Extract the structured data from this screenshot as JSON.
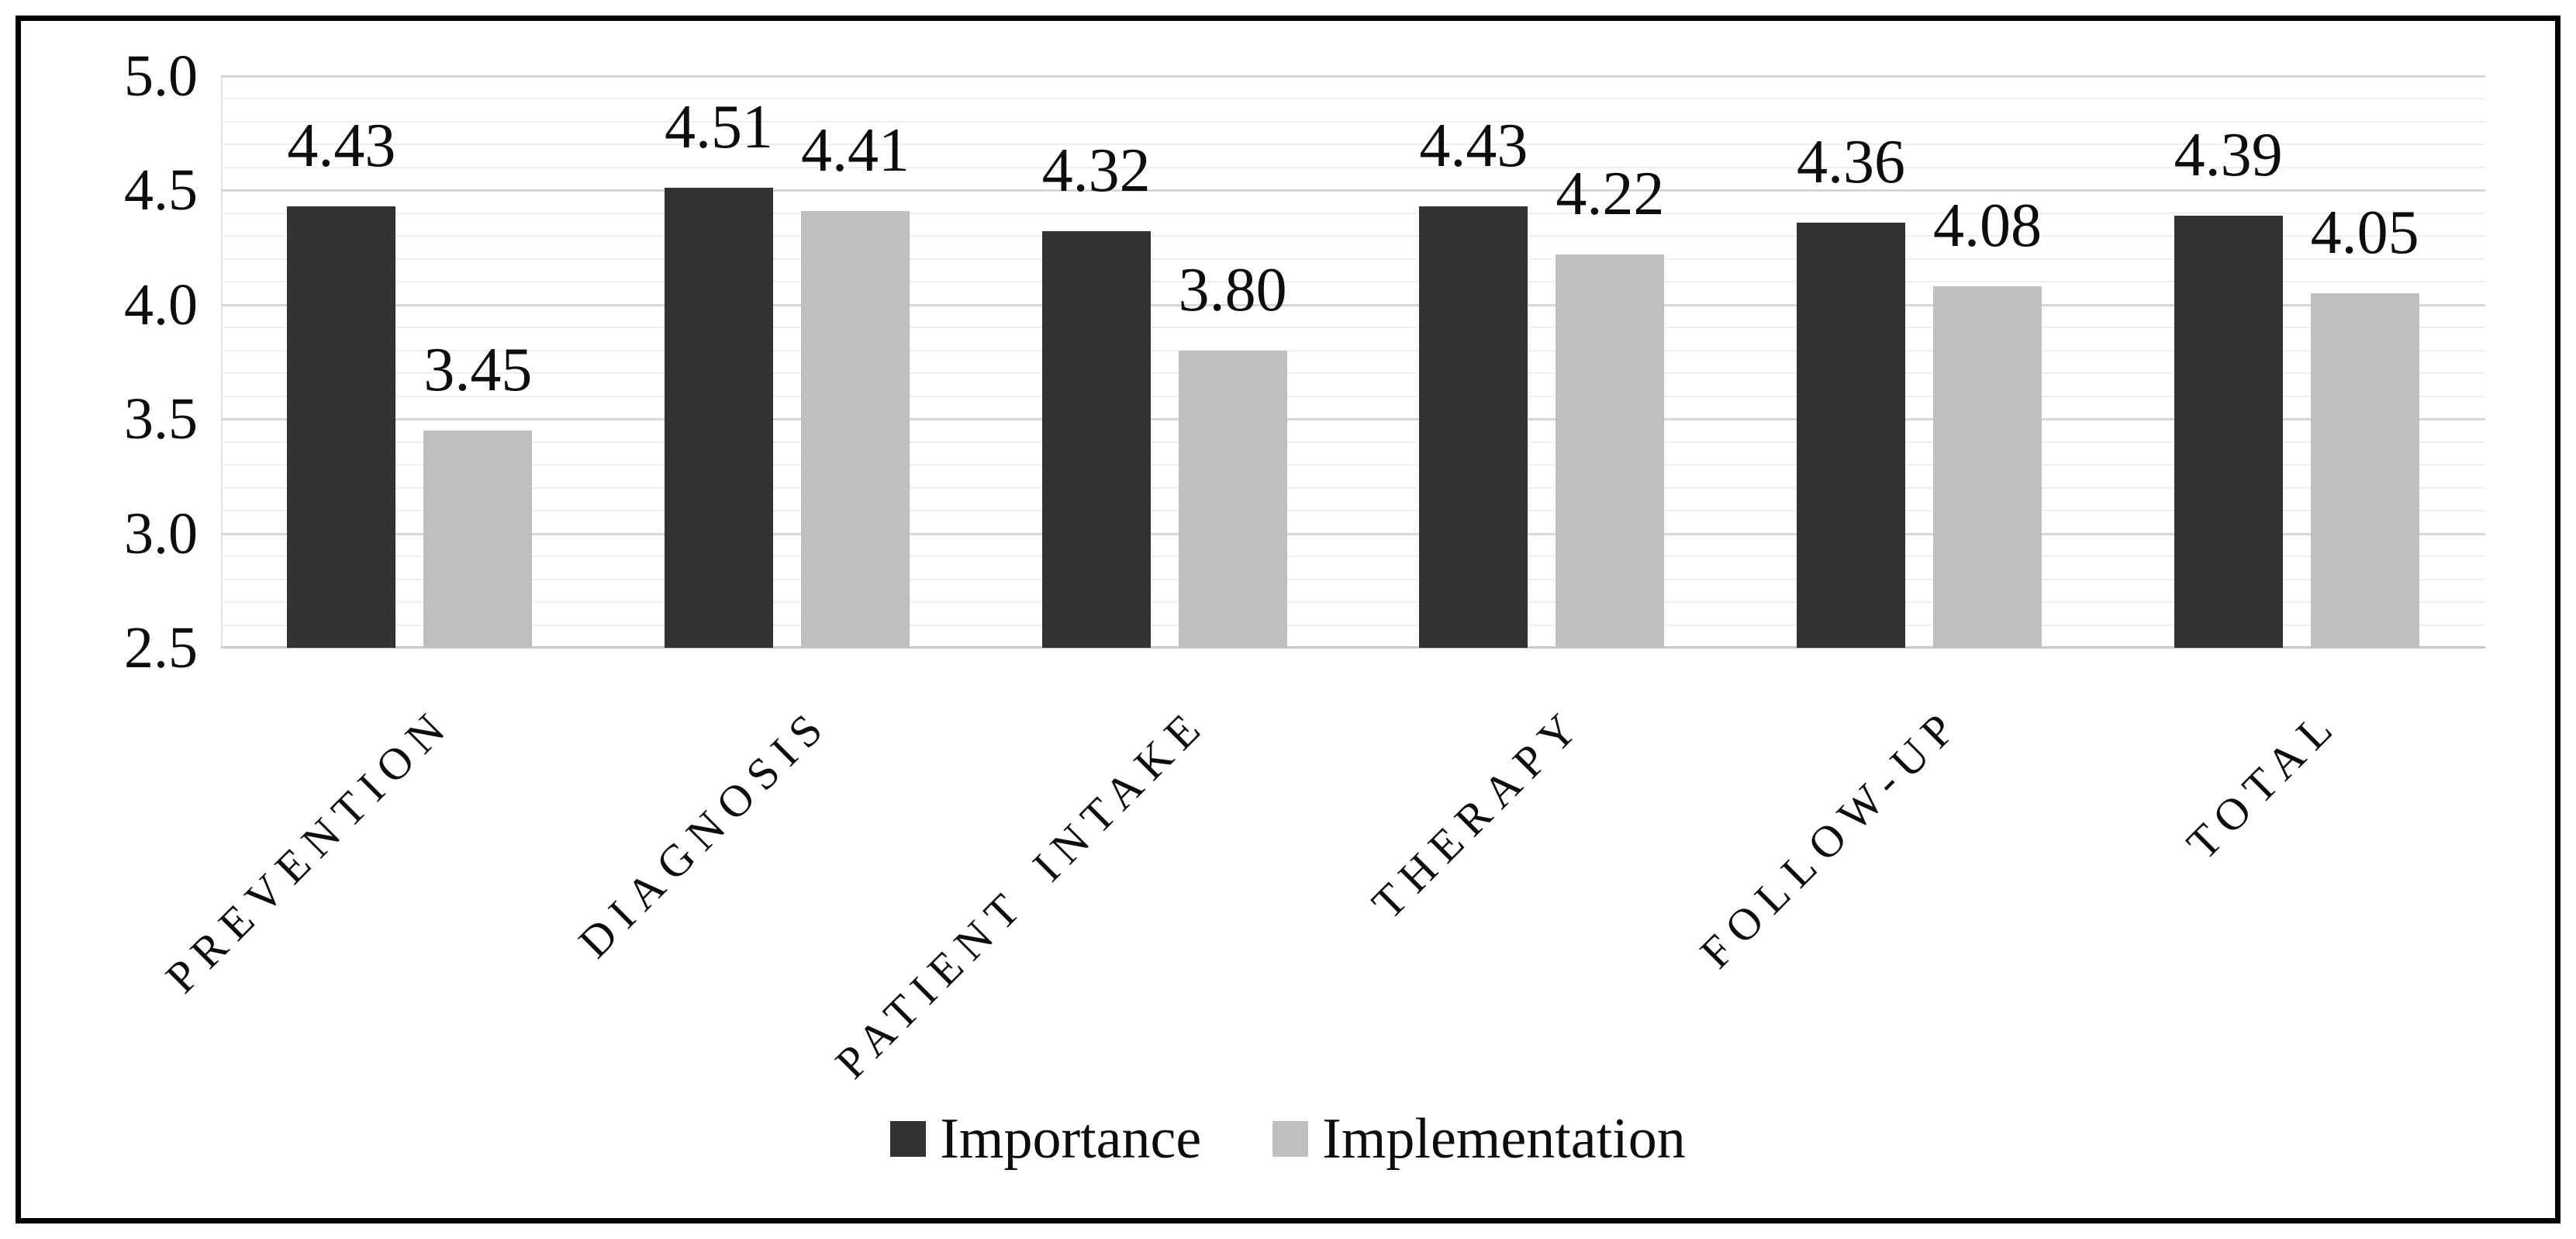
{
  "chart_data": {
    "type": "bar",
    "title": "",
    "xlabel": "",
    "ylabel": "",
    "categories": [
      "PREVENTION",
      "DIAGNOSIS",
      "PATIENT INTAKE",
      "THERAPY",
      "FOLLOW-UP",
      "TOTAL"
    ],
    "series": [
      {
        "name": "Importance",
        "color": "#323232",
        "values": [
          4.43,
          4.51,
          4.32,
          4.43,
          4.36,
          4.39
        ]
      },
      {
        "name": "Implementation",
        "color": "#bfbfbf",
        "values": [
          3.45,
          4.41,
          3.8,
          4.22,
          4.08,
          4.05
        ]
      }
    ],
    "value_labels": [
      [
        "4.43",
        "4.51",
        "4.32",
        "4.43",
        "4.36",
        "4.39"
      ],
      [
        "3.45",
        "4.41",
        "3.80",
        "4.22",
        "4.08",
        "4.05"
      ]
    ],
    "ylim": [
      2.5,
      5.0
    ],
    "ytick_labels": [
      "5.0",
      "4.5",
      "4.0",
      "3.5",
      "3.0",
      "2.5"
    ],
    "major_gridline_step": 0.5,
    "minor_gridline_step": 0.1,
    "grid": true,
    "legend_position": "bottom",
    "colors": {
      "importance_bar": "#323232",
      "implementation_bar": "#bfbfbf",
      "major_gridline": "#d7d7d7",
      "minor_gridline": "#efefef",
      "axis_line": "#c9c9c9",
      "text": "#0d0d0d",
      "frame_border": "#000000",
      "background": "#ffffff"
    }
  }
}
